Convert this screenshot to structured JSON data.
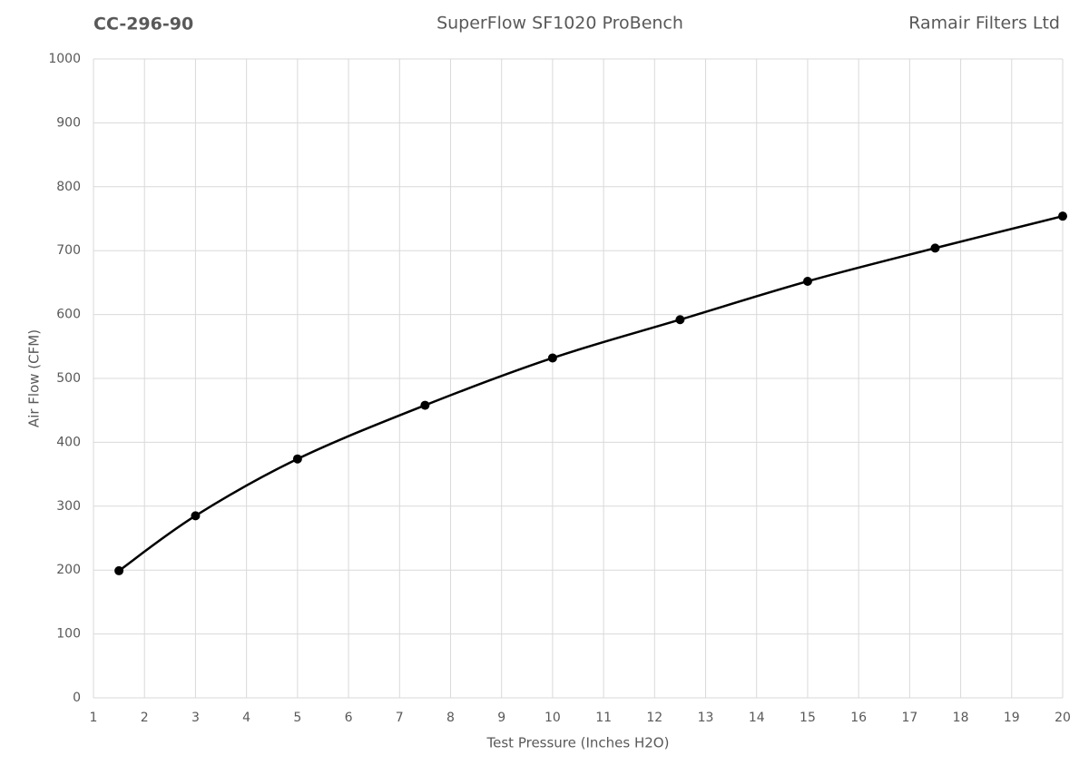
{
  "chart_data": {
    "type": "line",
    "title": "SuperFlow SF1020 ProBench",
    "header_left": "CC-296-90",
    "header_right": "Ramair Filters Ltd",
    "x_label": "Test Pressure (Inches H2O)",
    "y_label": "Air Flow (CFM)",
    "x": [
      1.5,
      3,
      5,
      7.5,
      10,
      12.5,
      15,
      17.5,
      20
    ],
    "series": [
      {
        "color": "#000000",
        "values": [
          199,
          285,
          374,
          458,
          532,
          592,
          652,
          704,
          754
        ]
      }
    ],
    "xlim": [
      1,
      20
    ],
    "xticks": [
      1,
      2,
      3,
      4,
      5,
      6,
      7,
      8,
      9,
      10,
      11,
      12,
      13,
      14,
      15,
      16,
      17,
      18,
      19,
      20
    ],
    "ylim": [
      0,
      1000
    ],
    "yticks": [
      0,
      100,
      200,
      300,
      400,
      500,
      600,
      700,
      800,
      900,
      1000
    ],
    "grid": true,
    "smooth": true,
    "marker": "circle"
  }
}
